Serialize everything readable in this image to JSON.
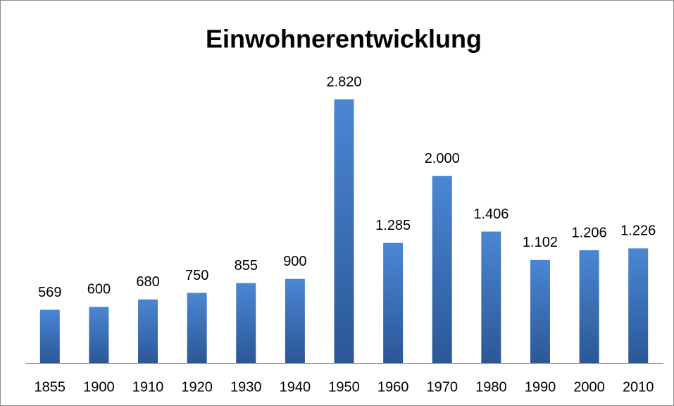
{
  "chart_data": {
    "type": "bar",
    "title": "Einwohnerentwicklung",
    "categories": [
      "1855",
      "1900",
      "1910",
      "1920",
      "1930",
      "1940",
      "1950",
      "1960",
      "1970",
      "1980",
      "1990",
      "2000",
      "2010"
    ],
    "values": [
      569,
      600,
      680,
      750,
      855,
      900,
      2820,
      1285,
      2000,
      1406,
      1102,
      1206,
      1226
    ],
    "value_labels": [
      "569",
      "600",
      "680",
      "750",
      "855",
      "900",
      "2.820",
      "1.285",
      "2.000",
      "1.406",
      "1.102",
      "1.206",
      "1.226"
    ],
    "color": "#3a72bf"
  }
}
